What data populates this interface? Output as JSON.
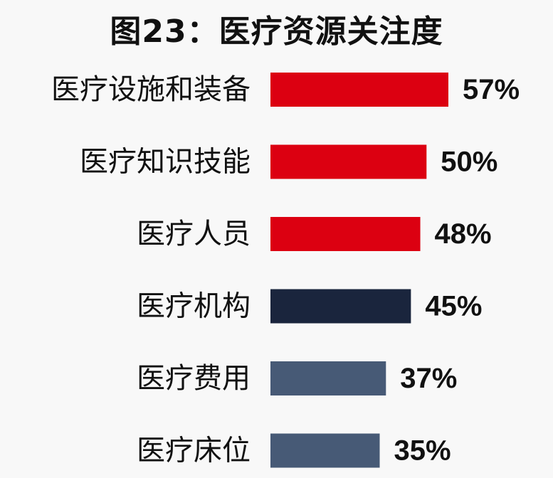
{
  "chart_data": {
    "type": "bar",
    "orientation": "horizontal",
    "title": "图23：医疗资源关注度",
    "categories": [
      "医疗设施和装备",
      "医疗知识技能",
      "医疗人员",
      "医疗机构",
      "医疗费用",
      "医疗床位"
    ],
    "values": [
      57,
      50,
      48,
      45,
      37,
      35
    ],
    "value_labels": [
      "57%",
      "50%",
      "48%",
      "45%",
      "37%",
      "35%"
    ],
    "bar_colors": [
      "#dc0011",
      "#dc0011",
      "#dc0011",
      "#1a253d",
      "#475a76",
      "#475a76"
    ],
    "xlabel": "",
    "ylabel": "",
    "xlim": [
      0,
      57
    ],
    "grid": false,
    "legend": "none"
  }
}
